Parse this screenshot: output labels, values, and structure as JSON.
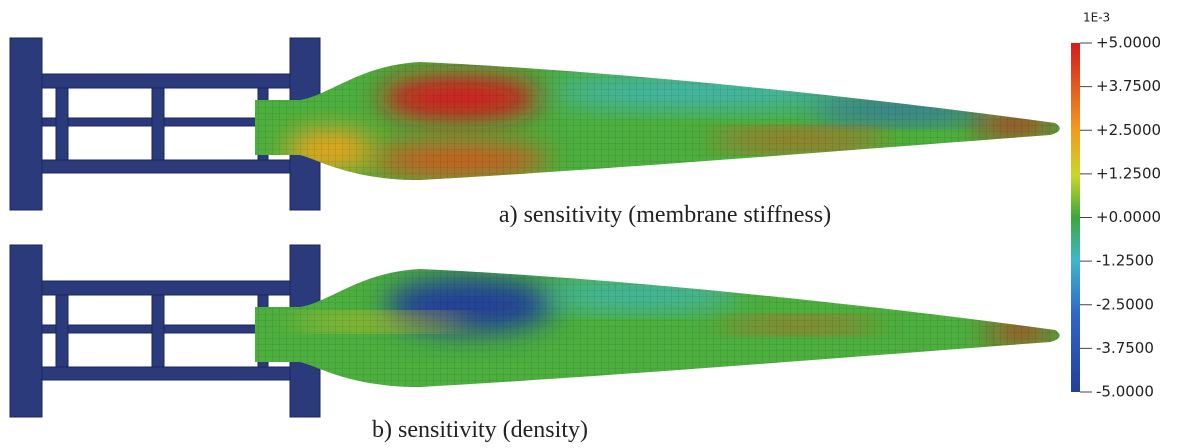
{
  "colorbar": {
    "unit": "1E-3",
    "ticks": [
      "+5.0000",
      "+3.7500",
      "+2.5000",
      "+1.2500",
      "+0.0000",
      "-1.2500",
      "-2.5000",
      "-3.7500",
      "-5.0000"
    ]
  },
  "panels": [
    {
      "caption": "a) sensitivity (membrane stiffness)"
    },
    {
      "caption": "b) sensitivity (density)"
    }
  ]
}
